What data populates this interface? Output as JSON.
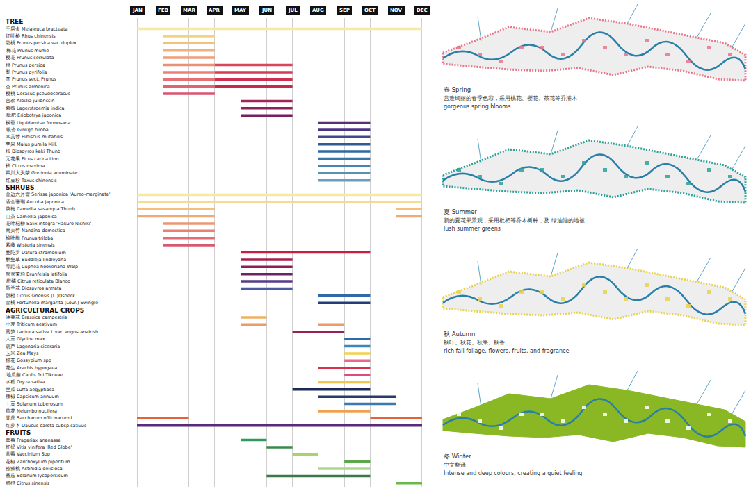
{
  "chart_data": {
    "type": "gantt",
    "categories": [
      "JAN",
      "FEB",
      "MAR",
      "APR",
      "MAY",
      "JUN",
      "JUL",
      "AUG",
      "SEP",
      "OCT",
      "NOV",
      "DEC"
    ],
    "grid": true,
    "groups": [
      {
        "name": "TREE",
        "rows": [
          {
            "label": "千层金",
            "latin": "Melaleuca bracteata",
            "bars": [
              {
                "start": "JAN",
                "end": "DEC",
                "color": "#f7e8a4"
              }
            ]
          },
          {
            "label": "红叶椿",
            "latin": "Rhus chinensis",
            "bars": [
              {
                "start": "FEB",
                "end": "APR",
                "color": "#f5d27c"
              }
            ]
          },
          {
            "label": "碧桃",
            "latin": "Prunus persica var. duplex",
            "bars": [
              {
                "start": "FEB",
                "end": "APR",
                "color": "#f4c07a"
              }
            ]
          },
          {
            "label": "梅花",
            "latin": "Prunus mume",
            "bars": [
              {
                "start": "FEB",
                "end": "APR",
                "color": "#f2b07a"
              }
            ]
          },
          {
            "label": "樱花",
            "latin": "Prunus serrulata",
            "bars": [
              {
                "start": "FEB",
                "end": "APR",
                "color": "#ef9e78"
              }
            ]
          },
          {
            "label": "桃",
            "latin": "Prunus persica",
            "bars": [
              {
                "start": "FEB",
                "end": "APR",
                "color": "#ec8f78"
              },
              {
                "start": "APR",
                "end": "JUL",
                "color": "#d9455a"
              }
            ]
          },
          {
            "label": "梨",
            "latin": "Prunus pyrifolia",
            "bars": [
              {
                "start": "FEB",
                "end": "APR",
                "color": "#e98078"
              },
              {
                "start": "APR",
                "end": "JUL",
                "color": "#d63a55"
              }
            ]
          },
          {
            "label": "李",
            "latin": "Prunus sect. Prunus",
            "bars": [
              {
                "start": "FEB",
                "end": "APR",
                "color": "#e57176"
              },
              {
                "start": "APR",
                "end": "JUL",
                "color": "#cf3050"
              }
            ]
          },
          {
            "label": "杏",
            "latin": "Prunus armenica",
            "bars": [
              {
                "start": "FEB",
                "end": "APR",
                "color": "#e06274"
              },
              {
                "start": "APR",
                "end": "JUL",
                "color": "#c42a4e"
              }
            ]
          },
          {
            "label": "樱桃",
            "latin": "Cerasus pseudocerasus",
            "bars": [
              {
                "start": "FEB",
                "end": "APR",
                "color": "#d85470"
              }
            ]
          },
          {
            "label": "合欢",
            "latin": "Albizia julibrissin",
            "bars": [
              {
                "start": "MAY",
                "end": "JUL",
                "color": "#a3245a"
              }
            ]
          },
          {
            "label": "紫薇",
            "latin": "Lagerstroemia indica",
            "bars": [
              {
                "start": "MAY",
                "end": "JUL",
                "color": "#8e2060"
              }
            ]
          },
          {
            "label": "枇杷",
            "latin": "Eriobotrya japonica",
            "bars": [
              {
                "start": "MAY",
                "end": "JUL",
                "color": "#7a1e62"
              }
            ]
          },
          {
            "label": "枫香",
            "latin": "Liquidambar formosana",
            "bars": [
              {
                "start": "AUG",
                "end": "OCT",
                "color": "#5a2d7a"
              }
            ]
          },
          {
            "label": "银杏",
            "latin": "Ginkgo biloba",
            "bars": [
              {
                "start": "AUG",
                "end": "OCT",
                "color": "#4a3580"
              }
            ]
          },
          {
            "label": "木芙蓉",
            "latin": "Hibiscus mutabilis",
            "bars": [
              {
                "start": "AUG",
                "end": "OCT",
                "color": "#3e4a8a"
              }
            ]
          },
          {
            "label": "苹果",
            "latin": "Malus pumila Mill.",
            "bars": [
              {
                "start": "AUG",
                "end": "OCT",
                "color": "#2f5a96"
              }
            ]
          },
          {
            "label": "柿",
            "latin": "Diospyros kaki Thunb",
            "bars": [
              {
                "start": "AUG",
                "end": "OCT",
                "color": "#2e6aa0"
              }
            ]
          },
          {
            "label": "无花果",
            "latin": "Ficus carica Linn",
            "bars": [
              {
                "start": "AUG",
                "end": "OCT",
                "color": "#3577a8"
              }
            ]
          },
          {
            "label": "柚",
            "latin": "Citrus maxima",
            "bars": [
              {
                "start": "AUG",
                "end": "OCT",
                "color": "#4585b0"
              }
            ]
          },
          {
            "label": "四川大头茶",
            "latin": "Gordonia acuminate",
            "bars": [
              {
                "start": "AUG",
                "end": "OCT",
                "color": "#5691b6"
              }
            ]
          },
          {
            "label": "红豆杉",
            "latin": "Taxus chinensis",
            "bars": [
              {
                "start": "AUG",
                "end": "OCT",
                "color": "#6a9ebc"
              }
            ]
          }
        ]
      },
      {
        "name": "SHRUBS",
        "rows": [
          {
            "label": "金边六月雪",
            "latin": "Serissa japonica 'Aureo-marginata'",
            "bars": [
              {
                "start": "JAN",
                "end": "DEC",
                "color": "#f7e8a4"
              }
            ]
          },
          {
            "label": "洒金珊瑚",
            "latin": "Aucuba japonica",
            "bars": [
              {
                "start": "JAN",
                "end": "DEC",
                "color": "#f5dc90"
              }
            ]
          },
          {
            "label": "茶梅",
            "latin": "Camellia sasanqua Thunb",
            "bars": [
              {
                "start": "JAN",
                "end": "APR",
                "color": "#f2c07a"
              },
              {
                "start": "NOV",
                "end": "DEC",
                "color": "#f2c07a"
              }
            ]
          },
          {
            "label": "山茶",
            "latin": "Camellia japonica",
            "bars": [
              {
                "start": "JAN",
                "end": "APR",
                "color": "#f0aa76"
              },
              {
                "start": "NOV",
                "end": "DEC",
                "color": "#f0aa76"
              }
            ]
          },
          {
            "label": "花叶杞柳",
            "latin": "Salix integra 'Hakuro Nishiki'",
            "bars": [
              {
                "start": "FEB",
                "end": "APR",
                "color": "#ec9676"
              }
            ]
          },
          {
            "label": "南天竹",
            "latin": "Nandina domestica",
            "bars": [
              {
                "start": "FEB",
                "end": "APR",
                "color": "#e68274"
              }
            ]
          },
          {
            "label": "榆叶梅",
            "latin": "Prunus triloba",
            "bars": [
              {
                "start": "FEB",
                "end": "APR",
                "color": "#e06e72"
              }
            ]
          },
          {
            "label": "紫藤",
            "latin": "Wisteria sinensis",
            "bars": [
              {
                "start": "FEB",
                "end": "APR",
                "color": "#d85a70"
              }
            ]
          },
          {
            "label": "曼陀罗",
            "latin": "Datura stramonium",
            "bars": [
              {
                "start": "MAY",
                "end": "OCT",
                "color": "#c8203c"
              }
            ]
          },
          {
            "label": "醉鱼草",
            "latin": "Buddleja lindleyana",
            "bars": [
              {
                "start": "MAY",
                "end": "JUL",
                "color": "#a81e4e"
              }
            ]
          },
          {
            "label": "萼距花",
            "latin": "Cuphea hookeriana Walp",
            "bars": [
              {
                "start": "MAY",
                "end": "JUL",
                "color": "#8e1e5a"
              }
            ]
          },
          {
            "label": "鸳鸯茉莉",
            "latin": "Brunfelsia latifolia",
            "bars": [
              {
                "start": "MAY",
                "end": "JUL",
                "color": "#6e2266"
              }
            ]
          },
          {
            "label": "柑橘",
            "latin": "Citrus reticulata Blanco",
            "bars": [
              {
                "start": "MAY",
                "end": "JUL",
                "color": "#5a3a86"
              }
            ]
          },
          {
            "label": "瓶兰花",
            "latin": "Diospyros armata",
            "bars": [
              {
                "start": "MAY",
                "end": "JUL",
                "color": "#4a5aa0"
              }
            ]
          },
          {
            "label": "甜橙",
            "latin": "Citrus sinensis (L.)Osbeck",
            "bars": [
              {
                "start": "AUG",
                "end": "OCT",
                "color": "#2f6aa8"
              }
            ]
          },
          {
            "label": "金橘",
            "latin": "Fortunella margarita (Lour.) Swingle",
            "bars": [
              {
                "start": "AUG",
                "end": "OCT",
                "color": "#1f3f7a"
              }
            ]
          }
        ]
      },
      {
        "name": "AGRICULTURAL CROPS",
        "rows": [
          {
            "label": "油菜花",
            "latin": "Brassica campestris",
            "bars": [
              {
                "start": "MAY",
                "end": "JUN",
                "color": "#f0b060"
              }
            ]
          },
          {
            "label": "小麦",
            "latin": "Triticum aestivum",
            "bars": [
              {
                "start": "MAY",
                "end": "JUN",
                "color": "#ec9a66"
              },
              {
                "start": "AUG",
                "end": "SEP",
                "color": "#ec9a66"
              }
            ]
          },
          {
            "label": "莴笋",
            "latin": "Lactuca sativa L.var. angustanaIrish",
            "bars": [
              {
                "start": "JUL",
                "end": "SEP",
                "color": "#9a2050"
              }
            ]
          },
          {
            "label": "大豆",
            "latin": "Glycine max",
            "bars": [
              {
                "start": "SEP",
                "end": "OCT",
                "color": "#2f6aa8"
              }
            ]
          },
          {
            "label": "葫芦",
            "latin": "Lagenaria siceraria",
            "bars": [
              {
                "start": "SEP",
                "end": "OCT",
                "color": "#3e86b8"
              }
            ]
          },
          {
            "label": "玉米",
            "latin": "Zea Mays",
            "bars": [
              {
                "start": "SEP",
                "end": "OCT",
                "color": "#f2d24a"
              }
            ]
          },
          {
            "label": "棉花",
            "latin": "Gossypium spp",
            "bars": [
              {
                "start": "SEP",
                "end": "OCT",
                "color": "#e86a8a"
              }
            ]
          },
          {
            "label": "花生",
            "latin": "Arachis hypogaea",
            "bars": [
              {
                "start": "AUG",
                "end": "OCT",
                "color": "#d6304e"
              }
            ]
          },
          {
            "label": "地瓜藤",
            "latin": "Caulis fici Tikouae",
            "bars": [
              {
                "start": "SEP",
                "end": "OCT",
                "color": "#e04a7a"
              }
            ]
          },
          {
            "label": "水稻",
            "latin": "Oryza sativa",
            "bars": [
              {
                "start": "AUG",
                "end": "OCT",
                "color": "#f0c84a"
              }
            ]
          },
          {
            "label": "丝瓜",
            "latin": "Luffa aegyptiaca",
            "bars": [
              {
                "start": "JUL",
                "end": "OCT",
                "color": "#1e2a5a"
              }
            ]
          },
          {
            "label": "辣椒",
            "latin": "Capsicum annuum",
            "bars": [
              {
                "start": "AUG",
                "end": "NOV",
                "color": "#2a3a6a"
              }
            ]
          },
          {
            "label": "土豆",
            "latin": "Solanum tuberosum",
            "bars": [
              {
                "start": "SEP",
                "end": "NOV",
                "color": "#3e78b0"
              }
            ]
          },
          {
            "label": "荷花",
            "latin": "Nelumbo nucifera",
            "bars": [
              {
                "start": "AUG",
                "end": "OCT",
                "color": "#f0a050"
              }
            ]
          },
          {
            "label": "甘蔗",
            "latin": "Saccharum officinarum L.",
            "bars": [
              {
                "start": "JAN",
                "end": "MAR",
                "color": "#e8603a"
              },
              {
                "start": "OCT",
                "end": "DEC",
                "color": "#e8603a"
              }
            ]
          },
          {
            "label": "红萝卜",
            "latin": "Daucus carota subsp.sativus",
            "bars": [
              {
                "start": "JAN",
                "end": "DEC",
                "color": "#5a2a7a"
              }
            ]
          }
        ]
      },
      {
        "name": "FRUITS",
        "rows": [
          {
            "label": "草莓",
            "latin": "Fragariax ananassa",
            "bars": [
              {
                "start": "MAY",
                "end": "JUN",
                "color": "#2e9a5a"
              }
            ]
          },
          {
            "label": "红提",
            "latin": "Vitis vinifera 'Red Globe'",
            "bars": [
              {
                "start": "JUN",
                "end": "JUL",
                "color": "#3a8a4a"
              }
            ]
          },
          {
            "label": "蓝莓",
            "latin": "Vaccinium Spp",
            "bars": [
              {
                "start": "JUL",
                "end": "AUG",
                "color": "#a8d46a"
              }
            ]
          },
          {
            "label": "花椒",
            "latin": "Zanthoxylum piperitum",
            "bars": [
              {
                "start": "SEP",
                "end": "OCT",
                "color": "#5aa84a"
              }
            ]
          },
          {
            "label": "猕猴桃",
            "latin": "Actinidia deliciosa",
            "bars": [
              {
                "start": "AUG",
                "end": "OCT",
                "color": "#a8d88a"
              }
            ]
          },
          {
            "label": "番茄",
            "latin": "Solanum lycopersicum",
            "bars": [
              {
                "start": "JUN",
                "end": "OCT",
                "color": "#3a7a4a"
              }
            ]
          },
          {
            "label": "脐橙",
            "latin": "Citrus sinensis",
            "bars": [
              {
                "start": "NOV",
                "end": "DEC",
                "color": "#6ab84a"
              }
            ]
          }
        ]
      }
    ]
  },
  "panels": [
    {
      "season": "春 Spring",
      "caption": "营造绚丽的春季色彩，采用桃花、樱花、茶花等乔灌木",
      "subcaption": "gorgeous spring blooms",
      "color": "#e8748a"
    },
    {
      "season": "夏 Summer",
      "caption": "新的夏花果景观，采用枇杷等乔木树种，及 绿油油的地被",
      "subcaption": "lush summer greens",
      "color": "#2aa198"
    },
    {
      "season": "秋 Autumn",
      "caption": "秋叶、秋花、秋果、秋香",
      "subcaption": "rich fall foliage, flowers, fruits, and fragrance",
      "color": "#e8d24a"
    },
    {
      "season": "冬 Winter",
      "caption": "中文翻译",
      "subcaption": "Intense and deep colours, creating a quiet feeling",
      "color": "#8ab825"
    }
  ]
}
